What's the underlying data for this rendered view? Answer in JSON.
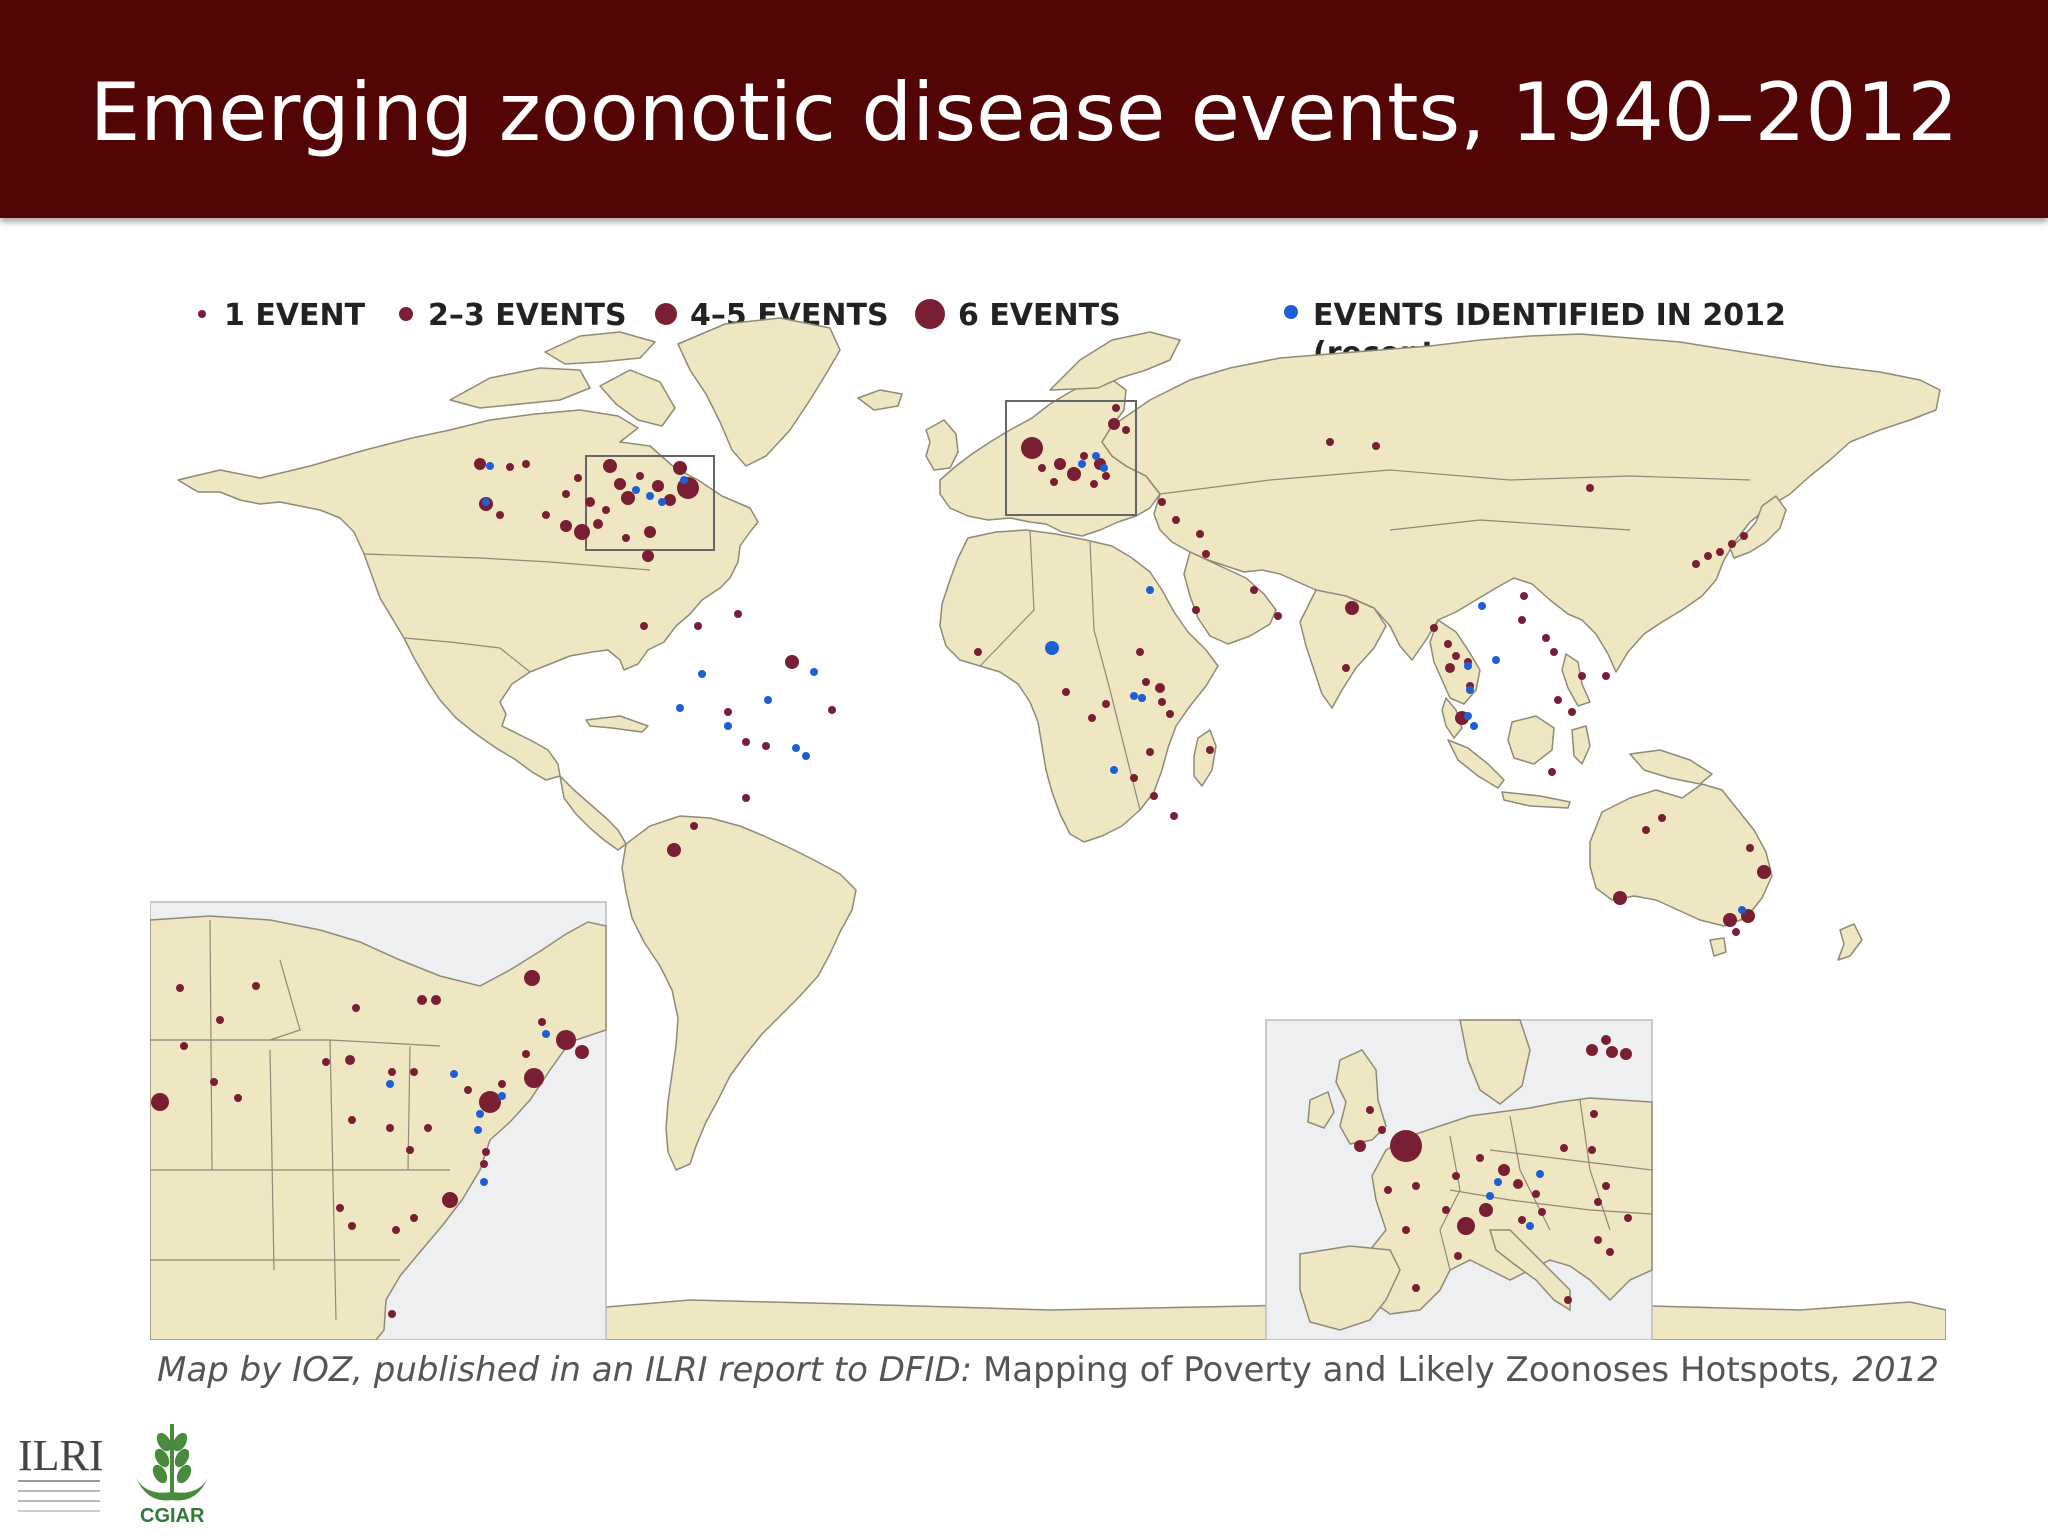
{
  "slide": {
    "title": "Emerging zoonotic disease events, 1940–2012"
  },
  "legend": {
    "items": [
      {
        "label": "1 EVENT",
        "size": "small"
      },
      {
        "label": "2–3 EVENTS",
        "size": "medium"
      },
      {
        "label": "4–5 EVENTS",
        "size": "large"
      },
      {
        "label": "6 EVENTS",
        "size": "xlarge"
      },
      {
        "label": "EVENTS IDENTIFIED IN 2012",
        "sublabel": "(recent emergence)",
        "color": "#1f5fd6"
      }
    ]
  },
  "colors": {
    "header_bg": "#530505",
    "land": "#efe6c2",
    "border": "#8f8a78",
    "event_dot": "#7a1f33",
    "recent_dot": "#1f5fd6",
    "inset_bg": "#eeeff1"
  },
  "caption": {
    "italic_part": "Map by IOZ, published in an ILRI report to DFID:",
    "regular_part": "Mapping of Poverty and Likely Zoonoses Hotspots",
    "year_part": ", 2012"
  },
  "logos": {
    "ilri": "ILRI",
    "cgiar": "CGIAR"
  }
}
